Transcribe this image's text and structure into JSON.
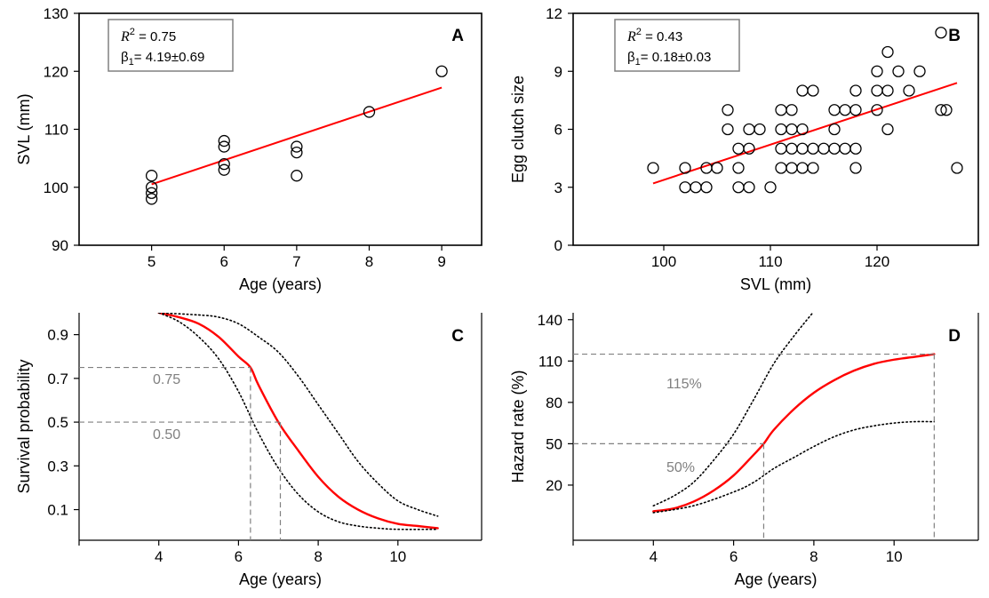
{
  "chart_data": [
    {
      "panel": "A",
      "type": "scatter",
      "xlabel": "Age (years)",
      "ylabel": "SVL (mm)",
      "xlim": [
        4.0,
        9.55
      ],
      "ylim": [
        90,
        130
      ],
      "xticks": [
        5,
        6,
        7,
        8,
        9
      ],
      "yticks": [
        90,
        100,
        110,
        120,
        130
      ],
      "points": [
        [
          5,
          98
        ],
        [
          5,
          99
        ],
        [
          5,
          100
        ],
        [
          5,
          102
        ],
        [
          6,
          103
        ],
        [
          6,
          104
        ],
        [
          6,
          107
        ],
        [
          6,
          108
        ],
        [
          7,
          102
        ],
        [
          7,
          106
        ],
        [
          7,
          107
        ],
        [
          8,
          113
        ],
        [
          9,
          120
        ]
      ],
      "fit_line": {
        "x": [
          5,
          9
        ],
        "y": [
          100.5,
          117.2
        ]
      },
      "annotation": {
        "r2_label": "R",
        "r2_sup": "2",
        "r2_value": " = 0.75",
        "beta_label": "β",
        "beta_sub": "1",
        "beta_value": "= 4.19±0.69"
      }
    },
    {
      "panel": "B",
      "type": "scatter",
      "xlabel": "SVL (mm)",
      "ylabel": "Egg clutch size",
      "xlim": [
        91.5,
        129.5
      ],
      "ylim": [
        0,
        12
      ],
      "xticks": [
        100,
        110,
        120
      ],
      "yticks": [
        0,
        3,
        6,
        9,
        12
      ],
      "points": [
        [
          99,
          4
        ],
        [
          102,
          3
        ],
        [
          102,
          4
        ],
        [
          103,
          3
        ],
        [
          104,
          3
        ],
        [
          104,
          4
        ],
        [
          105,
          4
        ],
        [
          106,
          6
        ],
        [
          106,
          7
        ],
        [
          107,
          3
        ],
        [
          107,
          4
        ],
        [
          107,
          5
        ],
        [
          108,
          3
        ],
        [
          108,
          5
        ],
        [
          108,
          6
        ],
        [
          109,
          6
        ],
        [
          110,
          3
        ],
        [
          111,
          4
        ],
        [
          111,
          5
        ],
        [
          111,
          6
        ],
        [
          111,
          7
        ],
        [
          112,
          4
        ],
        [
          112,
          5
        ],
        [
          112,
          6
        ],
        [
          112,
          7
        ],
        [
          113,
          4
        ],
        [
          113,
          5
        ],
        [
          113,
          6
        ],
        [
          113,
          8
        ],
        [
          114,
          4
        ],
        [
          114,
          5
        ],
        [
          114,
          8
        ],
        [
          115,
          5
        ],
        [
          116,
          5
        ],
        [
          116,
          6
        ],
        [
          116,
          7
        ],
        [
          117,
          5
        ],
        [
          117,
          7
        ],
        [
          118,
          4
        ],
        [
          118,
          5
        ],
        [
          118,
          7
        ],
        [
          118,
          8
        ],
        [
          120,
          7
        ],
        [
          120,
          8
        ],
        [
          120,
          9
        ],
        [
          121,
          6
        ],
        [
          121,
          8
        ],
        [
          121,
          10
        ],
        [
          122,
          9
        ],
        [
          123,
          8
        ],
        [
          124,
          9
        ],
        [
          126,
          7
        ],
        [
          126,
          11
        ],
        [
          126.5,
          7
        ],
        [
          127.5,
          4
        ]
      ],
      "fit_line": {
        "x": [
          99,
          127.5
        ],
        "y": [
          3.2,
          8.4
        ]
      },
      "annotation": {
        "r2_label": "R",
        "r2_sup": "2",
        "r2_value": " = 0.43",
        "beta_label": "β",
        "beta_sub": "1",
        "beta_value": "= 0.18±0.03"
      }
    },
    {
      "panel": "C",
      "type": "line",
      "xlabel": "Age (years)",
      "ylabel": "Survival probability",
      "xlim": [
        2.0,
        12.1
      ],
      "ylim": [
        -0.04,
        1.0
      ],
      "xticks": [
        4,
        6,
        8,
        10
      ],
      "yticks": [
        0.1,
        0.3,
        0.5,
        0.7,
        0.9
      ],
      "series": [
        {
          "style": "solid-red",
          "x": [
            4,
            4.5,
            5,
            5.5,
            6,
            6.3,
            6.5,
            7,
            7.5,
            8,
            8.5,
            9,
            9.5,
            10,
            10.5,
            11
          ],
          "y": [
            1.0,
            0.98,
            0.95,
            0.89,
            0.8,
            0.75,
            0.67,
            0.5,
            0.37,
            0.25,
            0.16,
            0.1,
            0.06,
            0.035,
            0.025,
            0.015
          ]
        },
        {
          "style": "dotted-upper",
          "x": [
            4,
            5,
            5.5,
            6,
            6.5,
            7,
            7.5,
            8,
            8.5,
            9,
            9.5,
            10,
            10.5,
            11
          ],
          "y": [
            1.0,
            0.99,
            0.98,
            0.95,
            0.89,
            0.82,
            0.71,
            0.58,
            0.45,
            0.32,
            0.22,
            0.14,
            0.1,
            0.07
          ]
        },
        {
          "style": "dotted-lower",
          "x": [
            4,
            4.5,
            5,
            5.5,
            6,
            6.5,
            7,
            7.5,
            8,
            8.5,
            9,
            9.5,
            10,
            11
          ],
          "y": [
            1.0,
            0.96,
            0.89,
            0.79,
            0.64,
            0.45,
            0.29,
            0.17,
            0.09,
            0.045,
            0.025,
            0.015,
            0.01,
            0.01
          ]
        }
      ],
      "reference_lines": [
        {
          "label": "0.75",
          "y": 0.75,
          "x": 6.3
        },
        {
          "label": "0.50",
          "y": 0.5,
          "x": 7.05
        }
      ]
    },
    {
      "panel": "D",
      "type": "line",
      "xlabel": "Age (years)",
      "ylabel": "Hazard rate (%)",
      "xlim": [
        2.0,
        12.1
      ],
      "ylim": [
        -20,
        145
      ],
      "xticks": [
        4,
        6,
        8,
        10
      ],
      "yticks": [
        20,
        50,
        80,
        110,
        140
      ],
      "series": [
        {
          "style": "solid-red",
          "x": [
            4,
            4.5,
            5,
            5.5,
            6,
            6.5,
            6.75,
            7,
            7.5,
            8,
            8.5,
            9,
            9.5,
            10,
            10.5,
            11
          ],
          "y": [
            1,
            3,
            8,
            16,
            27,
            42,
            50,
            60,
            75,
            87,
            96,
            103,
            108,
            111,
            113,
            115
          ]
        },
        {
          "style": "dotted-upper",
          "x": [
            4,
            4.5,
            5,
            5.5,
            6,
            6.5,
            7,
            7.5,
            8
          ],
          "y": [
            5,
            12,
            22,
            38,
            57,
            82,
            108,
            128,
            146
          ]
        },
        {
          "style": "dotted-lower",
          "x": [
            4,
            5,
            6,
            6.5,
            7,
            7.5,
            8,
            8.5,
            9,
            9.5,
            10,
            10.5,
            11
          ],
          "y": [
            0,
            5,
            15,
            22,
            32,
            40,
            48,
            55,
            60,
            63,
            65,
            66,
            66
          ]
        }
      ],
      "reference_lines": [
        {
          "label": "115%",
          "y": 115,
          "x": 11
        },
        {
          "label": "50%",
          "y": 50,
          "x": 6.75
        }
      ]
    }
  ]
}
